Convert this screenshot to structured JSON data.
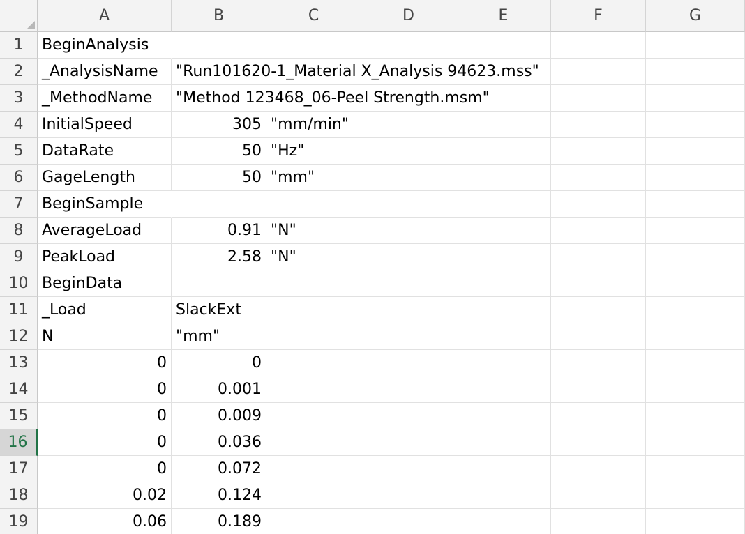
{
  "columns": [
    "A",
    "B",
    "C",
    "D",
    "E",
    "F",
    "G"
  ],
  "active_row": 16,
  "rows": [
    {
      "n": 1,
      "cells": [
        "BeginAnalysis",
        "",
        "",
        "",
        "",
        "",
        ""
      ]
    },
    {
      "n": 2,
      "cells": [
        "_AnalysisName",
        "\"Run101620-1_Material X_Analysis 94623.mss\"",
        "",
        "",
        "",
        "",
        ""
      ]
    },
    {
      "n": 3,
      "cells": [
        "_MethodName",
        "\"Method 123468_06-Peel Strength.msm\"",
        "",
        "",
        "",
        "",
        ""
      ]
    },
    {
      "n": 4,
      "cells": [
        "InitialSpeed",
        "305",
        "\"mm/min\"",
        "",
        "",
        "",
        ""
      ]
    },
    {
      "n": 5,
      "cells": [
        "DataRate",
        "50",
        "\"Hz\"",
        "",
        "",
        "",
        ""
      ]
    },
    {
      "n": 6,
      "cells": [
        "GageLength",
        "50",
        "\"mm\"",
        "",
        "",
        "",
        ""
      ]
    },
    {
      "n": 7,
      "cells": [
        "BeginSample",
        "",
        "",
        "",
        "",
        "",
        ""
      ]
    },
    {
      "n": 8,
      "cells": [
        "AverageLoad",
        "0.91",
        "\"N\"",
        "",
        "",
        "",
        ""
      ]
    },
    {
      "n": 9,
      "cells": [
        "PeakLoad",
        "2.58",
        "\"N\"",
        "",
        "",
        "",
        ""
      ]
    },
    {
      "n": 10,
      "cells": [
        "BeginData",
        "",
        "",
        "",
        "",
        "",
        ""
      ]
    },
    {
      "n": 11,
      "cells": [
        "_Load",
        "SlackExt",
        "",
        "",
        "",
        "",
        ""
      ]
    },
    {
      "n": 12,
      "cells": [
        "N",
        "\"mm\"",
        "",
        "",
        "",
        "",
        ""
      ]
    },
    {
      "n": 13,
      "cells": [
        "0",
        "0",
        "",
        "",
        "",
        "",
        ""
      ]
    },
    {
      "n": 14,
      "cells": [
        "0",
        "0.001",
        "",
        "",
        "",
        "",
        ""
      ]
    },
    {
      "n": 15,
      "cells": [
        "0",
        "0.009",
        "",
        "",
        "",
        "",
        ""
      ]
    },
    {
      "n": 16,
      "cells": [
        "0",
        "0.036",
        "",
        "",
        "",
        "",
        ""
      ]
    },
    {
      "n": 17,
      "cells": [
        "0",
        "0.072",
        "",
        "",
        "",
        "",
        ""
      ]
    },
    {
      "n": 18,
      "cells": [
        "0.02",
        "0.124",
        "",
        "",
        "",
        "",
        ""
      ]
    },
    {
      "n": 19,
      "cells": [
        "0.06",
        "0.189",
        "",
        "",
        "",
        "",
        ""
      ]
    }
  ],
  "colors": {
    "accent": "#217346",
    "header_bg": "#f3f3f3",
    "gridline": "#e1e1e1"
  }
}
